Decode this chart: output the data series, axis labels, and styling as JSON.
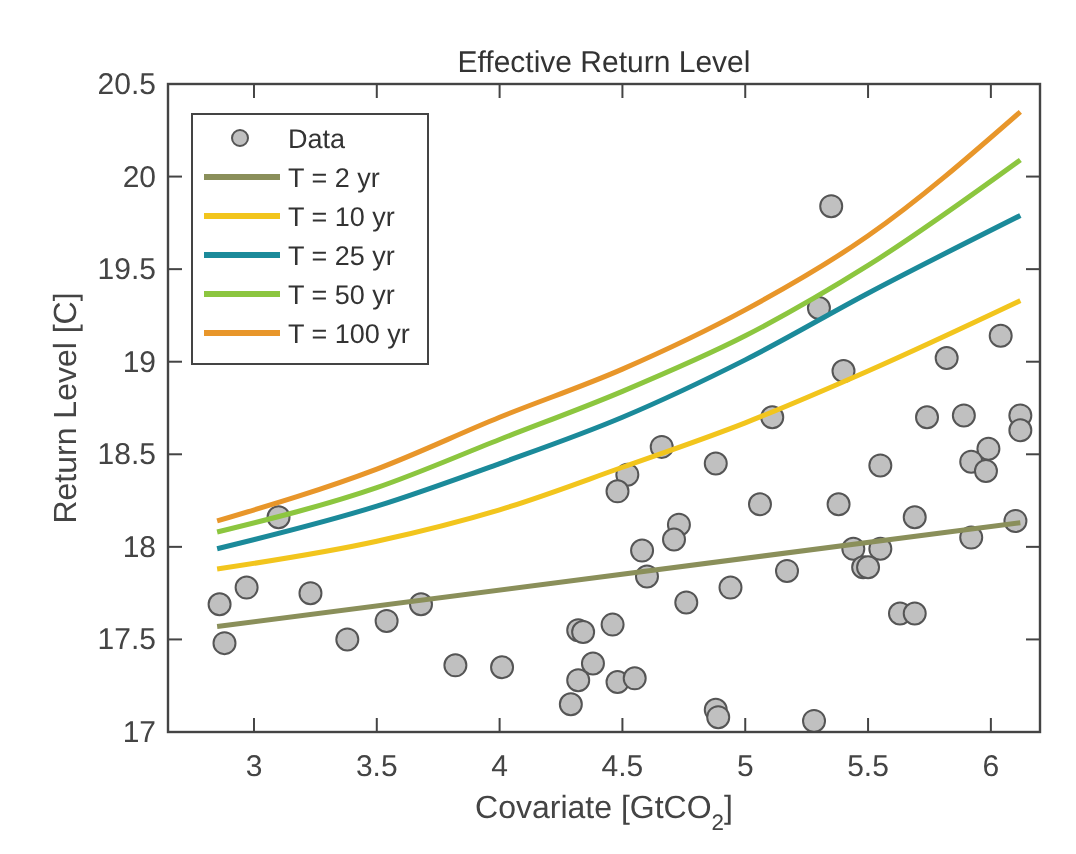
{
  "chart_data": {
    "type": "line",
    "title": "Effective Return Level",
    "xlabel": "Covariate [GtCO$_{2}$]",
    "ylabel": "Return Level [C]",
    "xlim": [
      2.65,
      6.2
    ],
    "xticks": [
      3,
      3.5,
      4,
      4.5,
      5,
      5.5,
      6
    ],
    "ylim": [
      17,
      20.5
    ],
    "yticks": [
      17,
      17.5,
      18,
      18.5,
      19,
      19.5,
      20,
      20.5
    ],
    "legend": "top left",
    "grid": false,
    "series": [
      {
        "name": "Data",
        "type": "scatter",
        "marker": "circle",
        "color": "#c0c0c0",
        "x": [
          2.86,
          2.88,
          2.97,
          3.1,
          3.23,
          3.38,
          3.54,
          3.68,
          3.82,
          4.01,
          4.29,
          4.32,
          4.32,
          4.34,
          4.38,
          5.35,
          5.3,
          5.4,
          6.04,
          5.82,
          5.74,
          5.89,
          6.12,
          6.12,
          5.99,
          5.92,
          5.98,
          5.11,
          4.66,
          4.52,
          4.48,
          4.88,
          5.06,
          5.38,
          5.55,
          5.69,
          6.1,
          5.92,
          4.73,
          4.71,
          4.58,
          5.44,
          5.55,
          5.48,
          5.5,
          4.6,
          5.17,
          4.76,
          4.94,
          5.63,
          5.69,
          4.46,
          4.48,
          4.55,
          4.88,
          4.89,
          5.28
        ],
        "values": [
          17.69,
          17.48,
          17.78,
          18.16,
          17.75,
          17.5,
          17.6,
          17.69,
          17.36,
          17.35,
          17.15,
          17.28,
          17.55,
          17.54,
          17.37,
          19.84,
          19.29,
          18.95,
          19.14,
          19.02,
          18.7,
          18.71,
          18.71,
          18.63,
          18.53,
          18.46,
          18.41,
          18.7,
          18.54,
          18.39,
          18.3,
          18.45,
          18.23,
          18.23,
          18.44,
          18.16,
          18.14,
          18.05,
          18.12,
          18.04,
          17.98,
          17.99,
          17.99,
          17.89,
          17.89,
          17.84,
          17.87,
          17.7,
          17.78,
          17.64,
          17.64,
          17.58,
          17.27,
          17.29,
          17.12,
          17.08,
          17.06
        ]
      },
      {
        "name": "T = 2 yr",
        "color": "#8a8f5a",
        "x": [
          2.85,
          6.12
        ],
        "values": [
          17.57,
          18.13
        ]
      },
      {
        "name": "T = 10 yr",
        "color": "#f2c51d",
        "x": [
          2.85,
          3.5,
          4,
          4.5,
          5,
          5.5,
          6.12
        ],
        "values": [
          17.88,
          18.03,
          18.2,
          18.43,
          18.67,
          18.95,
          19.33
        ]
      },
      {
        "name": "T = 25 yr",
        "color": "#1b8a9a",
        "x": [
          2.85,
          3.5,
          4,
          4.5,
          5,
          5.5,
          6.12
        ],
        "values": [
          17.99,
          18.22,
          18.45,
          18.7,
          19.01,
          19.37,
          19.79
        ]
      },
      {
        "name": "T = 50 yr",
        "color": "#8cc63f",
        "x": [
          2.85,
          3.5,
          4,
          4.5,
          5,
          5.5,
          6.12
        ],
        "values": [
          18.08,
          18.32,
          18.58,
          18.84,
          19.14,
          19.52,
          20.09
        ]
      },
      {
        "name": "T = 100 yr",
        "color": "#e8962a",
        "x": [
          2.85,
          3.5,
          4,
          4.5,
          5,
          5.5,
          6.12
        ],
        "values": [
          18.14,
          18.42,
          18.7,
          18.96,
          19.28,
          19.68,
          20.35
        ]
      }
    ]
  }
}
